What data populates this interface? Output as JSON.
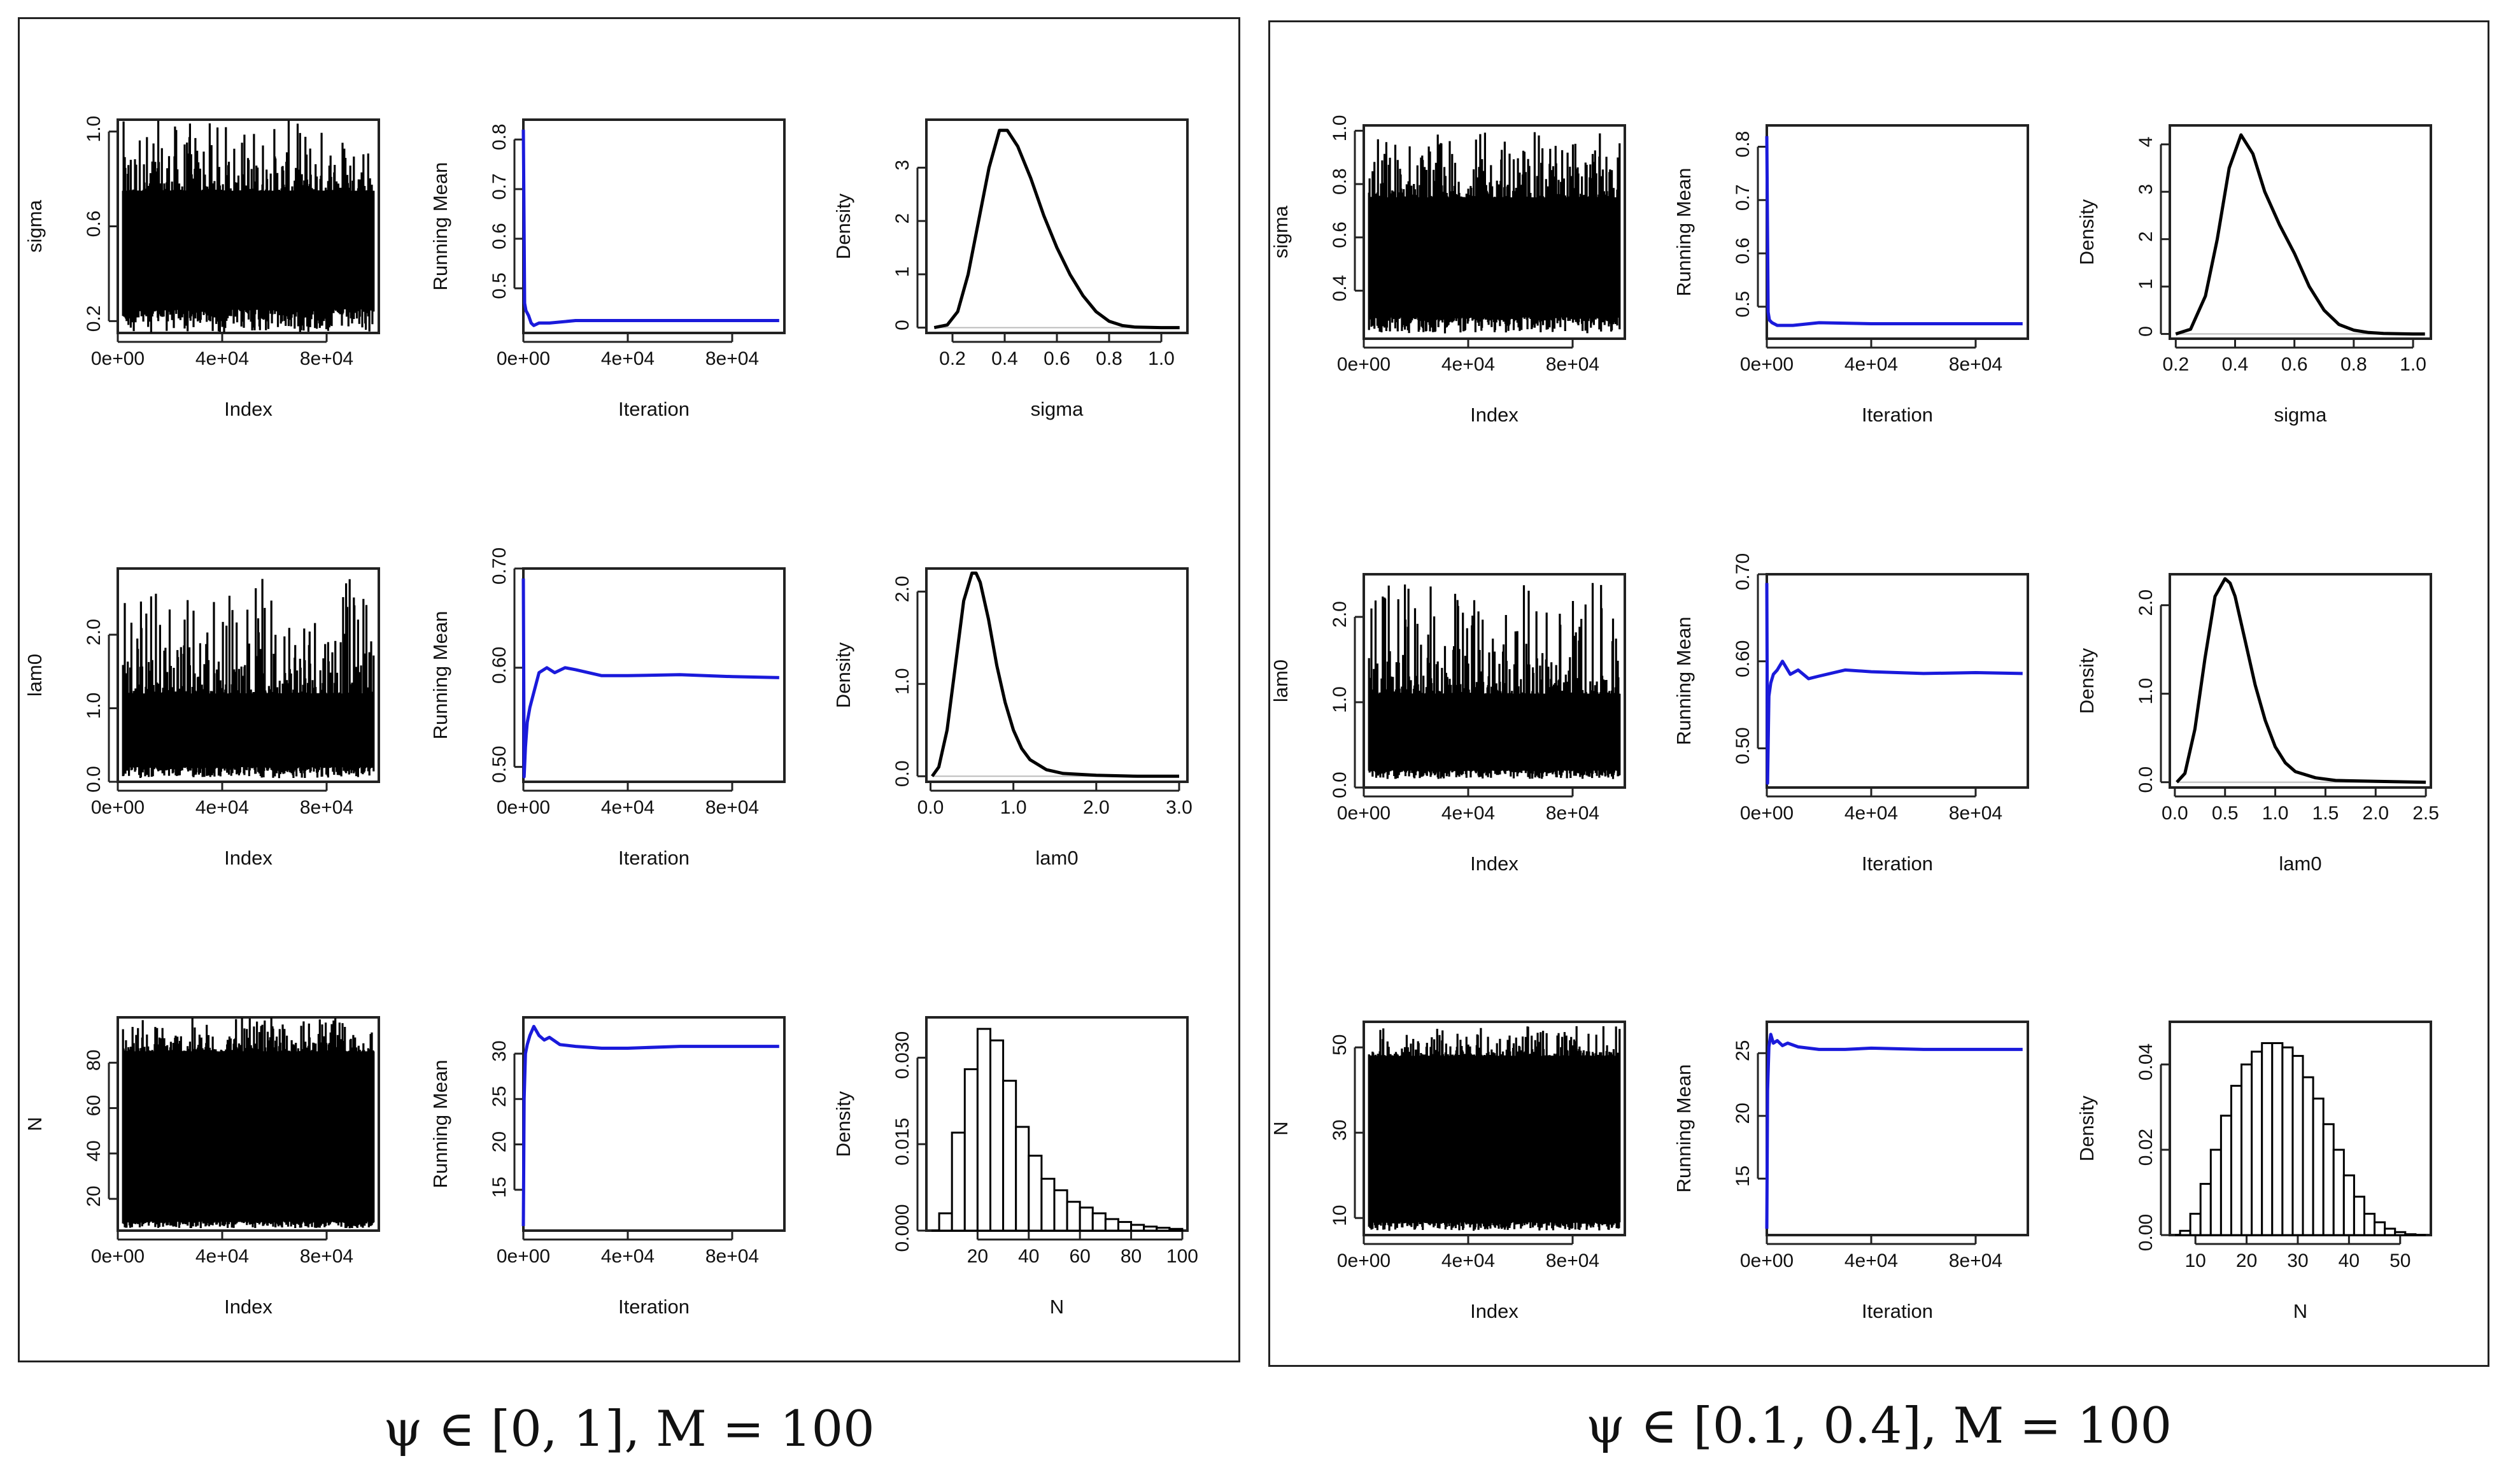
{
  "captions": {
    "left": "ψ ∈ [0, 1], M = 100",
    "right": "ψ ∈ [0.1, 0.4], M = 100"
  },
  "colors": {
    "trace": "#000000",
    "running_mean": "#1a1adb",
    "axis": "#222222",
    "zero_line": "#bbbbbb"
  },
  "chart_data": [
    {
      "type": "line",
      "panel": "left",
      "series_name": "sigma",
      "plot": "trace",
      "xlabel": "Index",
      "ylabel": "sigma",
      "xlim": [
        0,
        100000
      ],
      "ylim": [
        0.15,
        1.05
      ],
      "xticks": [
        0,
        40000,
        80000
      ],
      "xtick_labels": [
        "0e+00",
        "4e+04",
        "8e+04"
      ],
      "yticks": [
        0.2,
        0.6,
        1.0
      ],
      "ytick_labels": [
        "0.2",
        "0.6",
        "1.0"
      ],
      "trace_band": {
        "low": 0.25,
        "high": 0.75,
        "min": 0.15,
        "max": 1.05
      }
    },
    {
      "type": "line",
      "panel": "left",
      "series_name": "sigma",
      "plot": "running_mean",
      "xlabel": "Iteration",
      "ylabel": "Running Mean",
      "xlim": [
        0,
        100000
      ],
      "ylim": [
        0.41,
        0.84
      ],
      "xticks": [
        0,
        40000,
        80000
      ],
      "xtick_labels": [
        "0e+00",
        "4e+04",
        "8e+04"
      ],
      "yticks": [
        0.5,
        0.6,
        0.7,
        0.8
      ],
      "ytick_labels": [
        "0.5",
        "0.6",
        "0.7",
        "0.8"
      ],
      "x": [
        0,
        500,
        1000,
        2000,
        3000,
        4000,
        6000,
        10000,
        20000,
        40000,
        60000,
        80000,
        98000
      ],
      "y": [
        0.82,
        0.47,
        0.455,
        0.445,
        0.43,
        0.425,
        0.43,
        0.43,
        0.435,
        0.435,
        0.435,
        0.435,
        0.435
      ]
    },
    {
      "type": "line",
      "panel": "left",
      "series_name": "sigma",
      "plot": "density",
      "xlabel": "sigma",
      "ylabel": "Density",
      "xlim": [
        0.1,
        1.1
      ],
      "ylim": [
        -0.1,
        3.9
      ],
      "xticks": [
        0.2,
        0.4,
        0.6,
        0.8,
        1.0
      ],
      "xtick_labels": [
        "0.2",
        "0.4",
        "0.6",
        "0.8",
        "1.0"
      ],
      "yticks": [
        0,
        1,
        2,
        3
      ],
      "ytick_labels": [
        "0",
        "1",
        "2",
        "3"
      ],
      "x": [
        0.13,
        0.18,
        0.22,
        0.26,
        0.3,
        0.34,
        0.38,
        0.41,
        0.45,
        0.5,
        0.55,
        0.6,
        0.65,
        0.7,
        0.75,
        0.8,
        0.85,
        0.9,
        1.0,
        1.07
      ],
      "y": [
        0.0,
        0.05,
        0.3,
        1.0,
        2.0,
        3.0,
        3.7,
        3.7,
        3.4,
        2.8,
        2.1,
        1.5,
        1.0,
        0.6,
        0.3,
        0.12,
        0.04,
        0.01,
        0.0,
        0.0
      ]
    },
    {
      "type": "line",
      "panel": "left",
      "series_name": "lam0",
      "plot": "trace",
      "xlabel": "Index",
      "ylabel": "lam0",
      "xlim": [
        0,
        100000
      ],
      "ylim": [
        0.0,
        2.9
      ],
      "xticks": [
        0,
        40000,
        80000
      ],
      "xtick_labels": [
        "0e+00",
        "4e+04",
        "8e+04"
      ],
      "yticks": [
        0.0,
        1.0,
        2.0
      ],
      "ytick_labels": [
        "0.0",
        "1.0",
        "2.0"
      ],
      "trace_band": {
        "low": 0.2,
        "high": 1.2,
        "min": 0.05,
        "max": 2.8
      }
    },
    {
      "type": "line",
      "panel": "left",
      "series_name": "lam0",
      "plot": "running_mean",
      "xlabel": "Iteration",
      "ylabel": "Running Mean",
      "xlim": [
        0,
        100000
      ],
      "ylim": [
        0.485,
        0.7
      ],
      "xticks": [
        0,
        40000,
        80000
      ],
      "xtick_labels": [
        "0e+00",
        "4e+04",
        "8e+04"
      ],
      "yticks": [
        0.5,
        0.6,
        0.7
      ],
      "ytick_labels": [
        "0.50",
        "0.60",
        "0.70"
      ],
      "x": [
        0,
        300,
        800,
        1500,
        2500,
        4000,
        6000,
        9000,
        12000,
        16000,
        20000,
        30000,
        40000,
        60000,
        80000,
        98000
      ],
      "y": [
        0.69,
        0.49,
        0.52,
        0.545,
        0.56,
        0.575,
        0.595,
        0.6,
        0.595,
        0.6,
        0.598,
        0.592,
        0.592,
        0.593,
        0.591,
        0.59
      ]
    },
    {
      "type": "line",
      "panel": "left",
      "series_name": "lam0",
      "plot": "density",
      "xlabel": "lam0",
      "ylabel": "Density",
      "xlim": [
        -0.05,
        3.1
      ],
      "ylim": [
        -0.06,
        2.25
      ],
      "xticks": [
        0.0,
        1.0,
        2.0,
        3.0
      ],
      "xtick_labels": [
        "0.0",
        "1.0",
        "2.0",
        "3.0"
      ],
      "yticks": [
        0.0,
        1.0,
        2.0
      ],
      "ytick_labels": [
        "0.0",
        "1.0",
        "2.0"
      ],
      "x": [
        0.02,
        0.1,
        0.2,
        0.3,
        0.4,
        0.5,
        0.55,
        0.6,
        0.7,
        0.8,
        0.9,
        1.0,
        1.1,
        1.2,
        1.4,
        1.6,
        2.0,
        2.5,
        3.0
      ],
      "y": [
        0.0,
        0.1,
        0.5,
        1.2,
        1.9,
        2.2,
        2.2,
        2.1,
        1.7,
        1.2,
        0.8,
        0.5,
        0.3,
        0.18,
        0.07,
        0.03,
        0.01,
        0.0,
        0.0
      ]
    },
    {
      "type": "line",
      "panel": "left",
      "series_name": "N",
      "plot": "trace",
      "xlabel": "Index",
      "ylabel": "N",
      "xlim": [
        0,
        100000
      ],
      "ylim": [
        6,
        100
      ],
      "xticks": [
        0,
        40000,
        80000
      ],
      "xtick_labels": [
        "0e+00",
        "4e+04",
        "8e+04"
      ],
      "yticks": [
        20,
        40,
        60,
        80
      ],
      "ytick_labels": [
        "20",
        "40",
        "60",
        "80"
      ],
      "trace_band": {
        "low": 10,
        "high": 85,
        "min": 7,
        "max": 100
      }
    },
    {
      "type": "line",
      "panel": "left",
      "series_name": "N",
      "plot": "running_mean",
      "xlabel": "Iteration",
      "ylabel": "Running Mean",
      "xlim": [
        0,
        100000
      ],
      "ylim": [
        10.5,
        34
      ],
      "xticks": [
        0,
        40000,
        80000
      ],
      "xtick_labels": [
        "0e+00",
        "4e+04",
        "8e+04"
      ],
      "yticks": [
        15,
        20,
        25,
        30
      ],
      "ytick_labels": [
        "15",
        "20",
        "25",
        "30"
      ],
      "x": [
        0,
        300,
        800,
        1500,
        2500,
        4000,
        6000,
        8000,
        10000,
        14000,
        20000,
        30000,
        40000,
        60000,
        80000,
        98000
      ],
      "y": [
        11,
        25,
        30,
        31,
        32,
        33,
        32,
        31.5,
        31.8,
        31.0,
        30.8,
        30.6,
        30.6,
        30.8,
        30.8,
        30.8
      ]
    },
    {
      "type": "bar",
      "panel": "left",
      "series_name": "N",
      "plot": "histogram",
      "xlabel": "N",
      "ylabel": "Density",
      "xlim": [
        0,
        102
      ],
      "ylim": [
        0,
        0.037
      ],
      "xticks": [
        20,
        40,
        60,
        80,
        100
      ],
      "xtick_labels": [
        "20",
        "40",
        "60",
        "80",
        "100"
      ],
      "yticks": [
        0.0,
        0.015,
        0.03
      ],
      "ytick_labels": [
        "0.000",
        "0.015",
        "0.030"
      ],
      "bin_edges": [
        5,
        10,
        15,
        20,
        25,
        30,
        35,
        40,
        45,
        50,
        55,
        60,
        65,
        70,
        75,
        80,
        85,
        90,
        95,
        100
      ],
      "values": [
        0.003,
        0.017,
        0.028,
        0.035,
        0.033,
        0.026,
        0.018,
        0.013,
        0.009,
        0.007,
        0.005,
        0.004,
        0.003,
        0.002,
        0.0015,
        0.001,
        0.0007,
        0.0005,
        0.0003
      ]
    },
    {
      "type": "line",
      "panel": "right",
      "series_name": "sigma",
      "plot": "trace",
      "xlabel": "Index",
      "ylabel": "sigma",
      "xlim": [
        0,
        100000
      ],
      "ylim": [
        0.22,
        1.02
      ],
      "xticks": [
        0,
        40000,
        80000
      ],
      "xtick_labels": [
        "0e+00",
        "4e+04",
        "8e+04"
      ],
      "yticks": [
        0.4,
        0.6,
        0.8,
        1.0
      ],
      "ytick_labels": [
        "0.4",
        "0.6",
        "0.8",
        "1.0"
      ],
      "trace_band": {
        "low": 0.3,
        "high": 0.75,
        "min": 0.24,
        "max": 1.0
      }
    },
    {
      "type": "line",
      "panel": "right",
      "series_name": "sigma",
      "plot": "running_mean",
      "xlabel": "Iteration",
      "ylabel": "Running Mean",
      "xlim": [
        0,
        100000
      ],
      "ylim": [
        0.44,
        0.84
      ],
      "xticks": [
        0,
        40000,
        80000
      ],
      "xtick_labels": [
        "0e+00",
        "4e+04",
        "8e+04"
      ],
      "yticks": [
        0.5,
        0.6,
        0.7,
        0.8
      ],
      "ytick_labels": [
        "0.5",
        "0.6",
        "0.7",
        "0.8"
      ],
      "x": [
        0,
        500,
        1000,
        2000,
        4000,
        6000,
        10000,
        20000,
        40000,
        60000,
        80000,
        98000
      ],
      "y": [
        0.82,
        0.49,
        0.475,
        0.47,
        0.465,
        0.465,
        0.465,
        0.47,
        0.468,
        0.468,
        0.468,
        0.468
      ]
    },
    {
      "type": "line",
      "panel": "right",
      "series_name": "sigma",
      "plot": "density",
      "xlabel": "sigma",
      "ylabel": "Density",
      "xlim": [
        0.18,
        1.06
      ],
      "ylim": [
        -0.1,
        4.4
      ],
      "xticks": [
        0.2,
        0.4,
        0.6,
        0.8,
        1.0
      ],
      "xtick_labels": [
        "0.2",
        "0.4",
        "0.6",
        "0.8",
        "1.0"
      ],
      "yticks": [
        0,
        1,
        2,
        3,
        4
      ],
      "ytick_labels": [
        "0",
        "1",
        "2",
        "3",
        "4"
      ],
      "x": [
        0.2,
        0.25,
        0.3,
        0.34,
        0.38,
        0.42,
        0.46,
        0.5,
        0.55,
        0.6,
        0.65,
        0.7,
        0.75,
        0.8,
        0.85,
        0.9,
        1.0,
        1.04
      ],
      "y": [
        0.0,
        0.1,
        0.8,
        2.0,
        3.5,
        4.2,
        3.8,
        3.0,
        2.3,
        1.7,
        1.0,
        0.5,
        0.2,
        0.08,
        0.03,
        0.01,
        0.0,
        0.0
      ]
    },
    {
      "type": "line",
      "panel": "right",
      "series_name": "lam0",
      "plot": "trace",
      "xlabel": "Index",
      "ylabel": "lam0",
      "xlim": [
        0,
        100000
      ],
      "ylim": [
        0.0,
        2.5
      ],
      "xticks": [
        0,
        40000,
        80000
      ],
      "xtick_labels": [
        "0e+00",
        "4e+04",
        "8e+04"
      ],
      "yticks": [
        0.0,
        1.0,
        2.0
      ],
      "ytick_labels": [
        "0.0",
        "1.0",
        "2.0"
      ],
      "trace_band": {
        "low": 0.2,
        "high": 1.1,
        "min": 0.1,
        "max": 2.4
      }
    },
    {
      "type": "line",
      "panel": "right",
      "series_name": "lam0",
      "plot": "running_mean",
      "xlabel": "Iteration",
      "ylabel": "Running Mean",
      "xlim": [
        0,
        100000
      ],
      "ylim": [
        0.455,
        0.7
      ],
      "xticks": [
        0,
        40000,
        80000
      ],
      "xtick_labels": [
        "0e+00",
        "4e+04",
        "8e+04"
      ],
      "yticks": [
        0.5,
        0.6,
        0.7
      ],
      "ytick_labels": [
        "0.50",
        "0.60",
        "0.70"
      ],
      "x": [
        0,
        300,
        800,
        1500,
        2500,
        4000,
        6000,
        9000,
        12000,
        16000,
        20000,
        30000,
        40000,
        60000,
        80000,
        98000
      ],
      "y": [
        0.69,
        0.46,
        0.56,
        0.575,
        0.585,
        0.59,
        0.6,
        0.585,
        0.59,
        0.58,
        0.583,
        0.59,
        0.588,
        0.586,
        0.587,
        0.586
      ]
    },
    {
      "type": "line",
      "panel": "right",
      "series_name": "lam0",
      "plot": "density",
      "xlabel": "lam0",
      "ylabel": "Density",
      "xlim": [
        -0.05,
        2.55
      ],
      "ylim": [
        -0.06,
        2.35
      ],
      "xticks": [
        0.0,
        0.5,
        1.0,
        1.5,
        2.0,
        2.5
      ],
      "xtick_labels": [
        "0.0",
        "0.5",
        "1.0",
        "1.5",
        "2.0",
        "2.5"
      ],
      "yticks": [
        0.0,
        1.0,
        2.0
      ],
      "ytick_labels": [
        "0.0",
        "1.0",
        "2.0"
      ],
      "x": [
        0.02,
        0.1,
        0.2,
        0.3,
        0.4,
        0.5,
        0.55,
        0.6,
        0.7,
        0.8,
        0.9,
        1.0,
        1.1,
        1.2,
        1.4,
        1.6,
        2.0,
        2.5
      ],
      "y": [
        0.0,
        0.1,
        0.6,
        1.4,
        2.1,
        2.3,
        2.25,
        2.1,
        1.6,
        1.1,
        0.7,
        0.4,
        0.22,
        0.12,
        0.05,
        0.02,
        0.01,
        0.0
      ]
    },
    {
      "type": "line",
      "panel": "right",
      "series_name": "N",
      "plot": "trace",
      "xlabel": "Index",
      "ylabel": "N",
      "xlim": [
        0,
        100000
      ],
      "ylim": [
        6,
        56
      ],
      "xticks": [
        0,
        40000,
        80000
      ],
      "xtick_labels": [
        "0e+00",
        "4e+04",
        "8e+04"
      ],
      "yticks": [
        10,
        30,
        50
      ],
      "ytick_labels": [
        "10",
        "30",
        "50"
      ],
      "trace_band": {
        "low": 9,
        "high": 48,
        "min": 7,
        "max": 55
      }
    },
    {
      "type": "line",
      "panel": "right",
      "series_name": "N",
      "plot": "running_mean",
      "xlabel": "Iteration",
      "ylabel": "Running Mean",
      "xlim": [
        0,
        100000
      ],
      "ylim": [
        10.5,
        27.5
      ],
      "xticks": [
        0,
        40000,
        80000
      ],
      "xtick_labels": [
        "0e+00",
        "4e+04",
        "8e+04"
      ],
      "yticks": [
        15,
        20,
        25
      ],
      "ytick_labels": [
        "15",
        "20",
        "25"
      ],
      "x": [
        0,
        300,
        800,
        1500,
        2500,
        4000,
        6000,
        8000,
        12000,
        20000,
        30000,
        40000,
        60000,
        80000,
        98000
      ],
      "y": [
        11,
        22,
        25.5,
        26.5,
        25.8,
        26.0,
        25.6,
        25.8,
        25.5,
        25.3,
        25.3,
        25.4,
        25.3,
        25.3,
        25.3
      ]
    },
    {
      "type": "bar",
      "panel": "right",
      "series_name": "N",
      "plot": "histogram",
      "xlabel": "N",
      "ylabel": "Density",
      "xlim": [
        5,
        56
      ],
      "ylim": [
        0,
        0.05
      ],
      "xticks": [
        10,
        20,
        30,
        40,
        50
      ],
      "xtick_labels": [
        "10",
        "20",
        "30",
        "40",
        "50"
      ],
      "yticks": [
        0.0,
        0.02,
        0.04
      ],
      "ytick_labels": [
        "0.00",
        "0.02",
        "0.04"
      ],
      "bin_edges": [
        7,
        9,
        11,
        13,
        15,
        17,
        19,
        21,
        23,
        25,
        27,
        29,
        31,
        33,
        35,
        37,
        39,
        41,
        43,
        45,
        47,
        49,
        51,
        53
      ],
      "values": [
        0.001,
        0.005,
        0.012,
        0.02,
        0.028,
        0.035,
        0.04,
        0.043,
        0.045,
        0.045,
        0.044,
        0.042,
        0.037,
        0.032,
        0.026,
        0.02,
        0.014,
        0.009,
        0.005,
        0.003,
        0.0015,
        0.0007,
        0.0002
      ]
    }
  ]
}
